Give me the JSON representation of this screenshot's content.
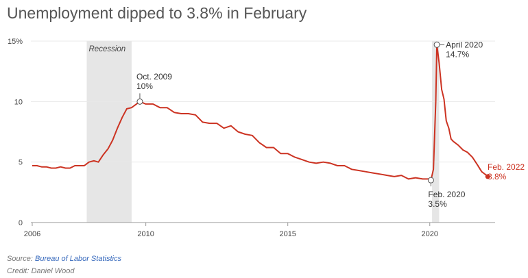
{
  "page": {
    "title": "Unemployment dipped to 3.8% in February",
    "source_label": "Source:",
    "source_link": "Bureau of Labor Statistics",
    "credit": "Credit: Daniel Wood"
  },
  "colors": {
    "line": "#cc3322",
    "recession": "#e6e6e6",
    "grid": "#e8e8e8",
    "annotation": "#333333"
  },
  "chart_data": {
    "type": "line",
    "title": "Unemployment dipped to 3.8% in February",
    "xlabel": "",
    "ylabel": "",
    "xlim": [
      2006,
      2022.3
    ],
    "ylim": [
      0,
      15
    ],
    "x_ticks": [
      2006,
      2010,
      2015,
      2020
    ],
    "y_ticks": [
      0,
      5,
      10,
      15
    ],
    "y_tick_labels": [
      "0",
      "5",
      "10",
      "15%"
    ],
    "grid": true,
    "shaded_regions": [
      {
        "label": "Recession",
        "start": 2007.92,
        "end": 2009.5
      },
      {
        "label": "",
        "start": 2020.08,
        "end": 2020.33
      }
    ],
    "annotations": [
      {
        "x": 2009.79,
        "y": 10.0,
        "lines": [
          "Oct. 2009",
          "10%"
        ]
      },
      {
        "x": 2020.25,
        "y": 14.7,
        "lines": [
          "April 2020",
          "14.7%"
        ]
      },
      {
        "x": 2020.04,
        "y": 3.5,
        "lines": [
          "Feb. 2020",
          "3.5%"
        ]
      },
      {
        "x": 2022.04,
        "y": 3.8,
        "lines": [
          "Feb. 2022",
          "3.8%"
        ]
      }
    ],
    "series": [
      {
        "x": [
          2006.0,
          2006.17,
          2006.33,
          2006.5,
          2006.67,
          2006.83,
          2007.0,
          2007.17,
          2007.33,
          2007.5,
          2007.67,
          2007.83,
          2008.0,
          2008.17,
          2008.33,
          2008.5,
          2008.67,
          2008.83,
          2009.0,
          2009.17,
          2009.33,
          2009.5,
          2009.67,
          2009.79,
          2010.0,
          2010.25,
          2010.5,
          2010.75,
          2011.0,
          2011.25,
          2011.5,
          2011.75,
          2012.0,
          2012.25,
          2012.5,
          2012.75,
          2013.0,
          2013.25,
          2013.5,
          2013.75,
          2014.0,
          2014.25,
          2014.5,
          2014.75,
          2015.0,
          2015.25,
          2015.5,
          2015.75,
          2016.0,
          2016.25,
          2016.5,
          2016.75,
          2017.0,
          2017.25,
          2017.5,
          2017.75,
          2018.0,
          2018.25,
          2018.5,
          2018.75,
          2019.0,
          2019.25,
          2019.5,
          2019.75,
          2020.0,
          2020.04,
          2020.13,
          2020.21,
          2020.25,
          2020.33,
          2020.42,
          2020.5,
          2020.58,
          2020.67,
          2020.75,
          2020.83,
          2021.0,
          2021.17,
          2021.33,
          2021.5,
          2021.67,
          2021.83,
          2022.0,
          2022.04
        ],
        "values": [
          4.7,
          4.7,
          4.6,
          4.6,
          4.5,
          4.5,
          4.6,
          4.5,
          4.5,
          4.7,
          4.7,
          4.7,
          5.0,
          5.1,
          5.0,
          5.6,
          6.1,
          6.8,
          7.8,
          8.7,
          9.4,
          9.5,
          9.8,
          10.0,
          9.8,
          9.8,
          9.5,
          9.5,
          9.1,
          9.0,
          9.0,
          8.9,
          8.3,
          8.2,
          8.2,
          7.8,
          8.0,
          7.5,
          7.3,
          7.2,
          6.6,
          6.2,
          6.2,
          5.7,
          5.7,
          5.4,
          5.2,
          5.0,
          4.9,
          5.0,
          4.9,
          4.7,
          4.7,
          4.4,
          4.3,
          4.2,
          4.1,
          4.0,
          3.9,
          3.8,
          3.9,
          3.6,
          3.7,
          3.6,
          3.6,
          3.5,
          4.4,
          10.0,
          14.7,
          13.2,
          11.0,
          10.2,
          8.4,
          7.8,
          6.9,
          6.7,
          6.4,
          6.0,
          5.8,
          5.4,
          4.8,
          4.2,
          3.9,
          3.8
        ]
      }
    ]
  }
}
